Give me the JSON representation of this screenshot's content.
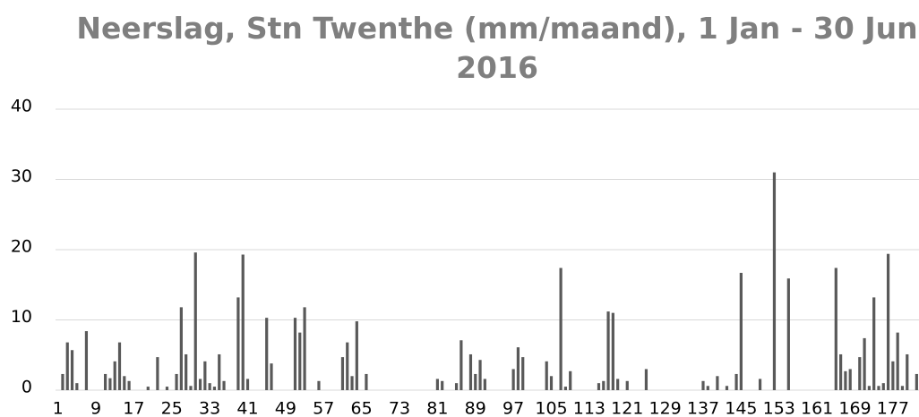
{
  "chart_data": {
    "type": "bar",
    "title": "Neerslag, Stn Twenthe (mm/maand), 1 Jan - 30 Jun 2016",
    "categories": [
      1,
      null,
      null,
      null,
      null,
      null,
      null,
      null,
      9,
      null,
      null,
      null,
      null,
      null,
      null,
      null,
      17,
      null,
      null,
      null,
      null,
      null,
      null,
      null,
      25,
      null,
      null,
      null,
      null,
      null,
      null,
      null,
      33,
      null,
      null,
      null,
      null,
      null,
      null,
      null,
      41,
      null,
      null,
      null,
      null,
      null,
      null,
      null,
      49,
      null,
      null,
      null,
      null,
      null,
      null,
      null,
      57,
      null,
      null,
      null,
      null,
      null,
      null,
      null,
      65,
      null,
      null,
      null,
      null,
      null,
      null,
      null,
      73,
      null,
      null,
      null,
      null,
      null,
      null,
      null,
      81,
      null,
      null,
      null,
      null,
      null,
      null,
      null,
      89,
      null,
      null,
      null,
      null,
      null,
      null,
      null,
      97,
      null,
      null,
      null,
      null,
      null,
      null,
      null,
      105,
      null,
      null,
      null,
      null,
      null,
      null,
      null,
      113,
      null,
      null,
      null,
      null,
      null,
      null,
      null,
      121,
      null,
      null,
      null,
      null,
      null,
      null,
      null,
      129,
      null,
      null,
      null,
      null,
      null,
      null,
      null,
      137,
      null,
      null,
      null,
      null,
      null,
      null,
      null,
      145,
      null,
      null,
      null,
      null,
      null,
      null,
      null,
      153,
      null,
      null,
      null,
      null,
      null,
      null,
      null,
      161,
      null,
      null,
      null,
      null,
      null,
      null,
      null,
      169,
      null,
      null,
      null,
      null,
      null,
      null,
      null,
      177,
      null,
      null,
      null,
      null,
      null
    ],
    "values": [
      0,
      2.3,
      6.8,
      5.7,
      1.0,
      0,
      8.4,
      0,
      0,
      0,
      2.3,
      1.7,
      4.1,
      6.8,
      2.0,
      1.3,
      0,
      0,
      0,
      0.5,
      0,
      4.7,
      0,
      0.5,
      0,
      2.3,
      11.8,
      5.1,
      0.6,
      19.6,
      1.6,
      4.1,
      1.0,
      0.5,
      5.1,
      1.3,
      0,
      0,
      13.2,
      19.3,
      1.6,
      0,
      0,
      0,
      10.3,
      3.8,
      0,
      0,
      0,
      0,
      10.3,
      8.2,
      11.8,
      0,
      0,
      1.3,
      0,
      0,
      0,
      0,
      4.7,
      6.8,
      2.0,
      9.8,
      0,
      2.3,
      0,
      0,
      0,
      0,
      0,
      0,
      0,
      0,
      0,
      0,
      0,
      0,
      0,
      0,
      1.6,
      1.3,
      0,
      0,
      1.0,
      7.1,
      0,
      5.1,
      2.3,
      4.3,
      1.6,
      0,
      0,
      0,
      0,
      0,
      3.0,
      6.1,
      4.7,
      0,
      0,
      0,
      0,
      4.1,
      2.0,
      0,
      17.4,
      0.5,
      2.7,
      0,
      0,
      0,
      0,
      0,
      1.0,
      1.3,
      11.2,
      11.0,
      1.6,
      0,
      1.3,
      0,
      0,
      0,
      3.0,
      0,
      0,
      0,
      0,
      0,
      0,
      0,
      0,
      0,
      0,
      0,
      1.3,
      0.6,
      0,
      2.0,
      0,
      0.6,
      0,
      2.3,
      16.7,
      0,
      0,
      0,
      1.6,
      0,
      0,
      31.0,
      0,
      0,
      15.9,
      0,
      0,
      0,
      0,
      0,
      0,
      0,
      0,
      0,
      17.4,
      5.1,
      2.7,
      3.0,
      0,
      4.7,
      7.4,
      0.6,
      13.2,
      0.6,
      1.0,
      19.4,
      4.1,
      8.2,
      0.6,
      5.1,
      0,
      2.3
    ],
    "color": "#595959",
    "ylim": [
      0,
      40
    ],
    "yticks": [
      0,
      10,
      20,
      30,
      40
    ],
    "grid": true
  }
}
